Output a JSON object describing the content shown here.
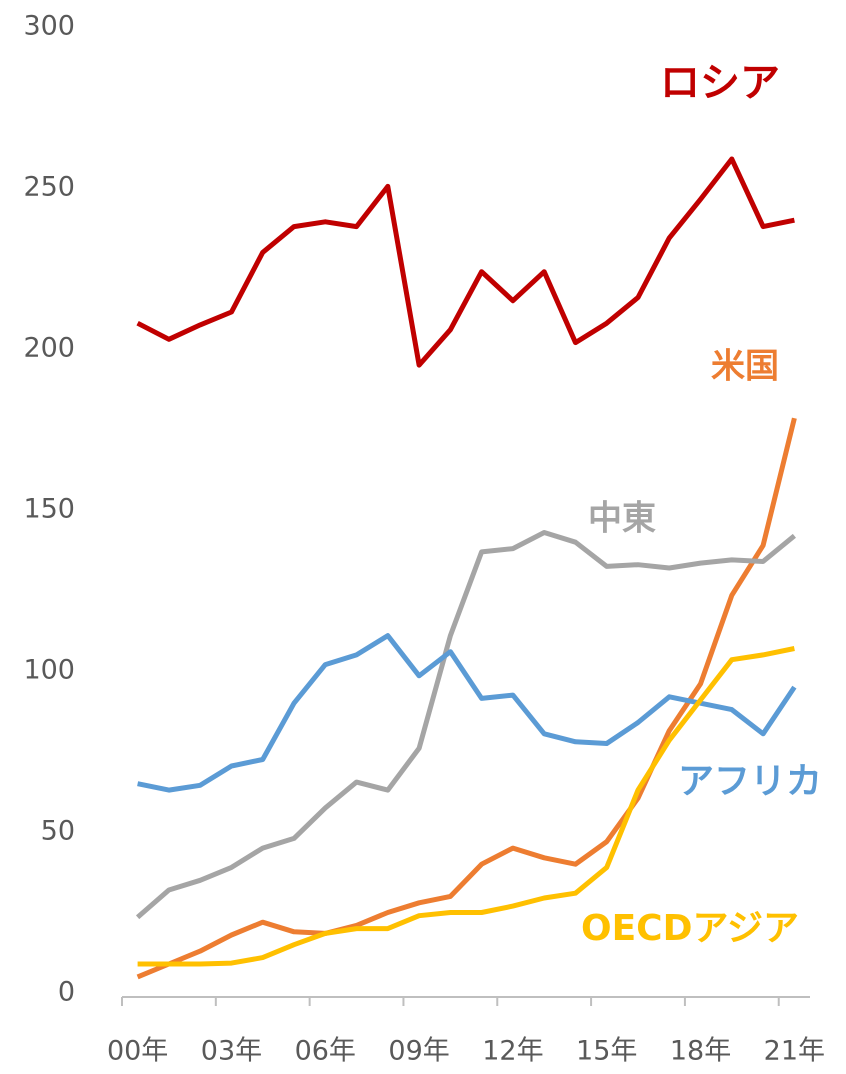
{
  "chart_data": {
    "type": "line",
    "categories": [
      "00年",
      null,
      null,
      "03年",
      null,
      null,
      "06年",
      null,
      null,
      "09年",
      null,
      null,
      "12年",
      null,
      null,
      "15年",
      null,
      null,
      "18年",
      null,
      null,
      "21年"
    ],
    "ylim": [
      0,
      300
    ],
    "yticks": [
      0,
      50,
      100,
      150,
      200,
      250,
      300
    ],
    "grid": false,
    "series": [
      {
        "name": "ロシア",
        "color": "#c00000",
        "values": [
          208,
          203,
          207.5,
          211.5,
          230,
          238,
          239.5,
          238,
          250.5,
          195,
          206,
          224,
          215,
          224,
          202,
          208,
          216,
          234.5,
          246.5,
          259,
          238,
          240
        ]
      },
      {
        "name": "米国",
        "color": "#ed7d31",
        "values": [
          5,
          9,
          13,
          18,
          22,
          19,
          18.5,
          21,
          25,
          28,
          30,
          40,
          45,
          42,
          40,
          47,
          60.5,
          81.5,
          96,
          123.5,
          139,
          178.5
        ]
      },
      {
        "name": "中東",
        "color": "#a5a5a5",
        "values": [
          23.5,
          32,
          35,
          39,
          45,
          48,
          57.5,
          65.5,
          63,
          76,
          111,
          137,
          138,
          143,
          140,
          132.5,
          133,
          132,
          133.5,
          134.5,
          134,
          142
        ]
      },
      {
        "name": "アフリカ",
        "color": "#5b9bd5",
        "values": [
          65,
          63,
          64.5,
          70.5,
          72.5,
          90,
          102,
          105,
          111,
          98.5,
          106,
          91.5,
          92.5,
          80.5,
          78,
          77.5,
          84,
          92,
          90,
          88,
          80.5,
          95
        ]
      },
      {
        "name": "OECDアジア",
        "color": "#ffc000",
        "values": [
          9,
          9,
          9,
          9.3,
          11,
          15,
          18.5,
          20,
          20,
          24,
          25,
          25,
          27,
          29.5,
          31,
          39,
          63,
          78.5,
          91,
          103.5,
          105,
          107
        ]
      }
    ]
  }
}
